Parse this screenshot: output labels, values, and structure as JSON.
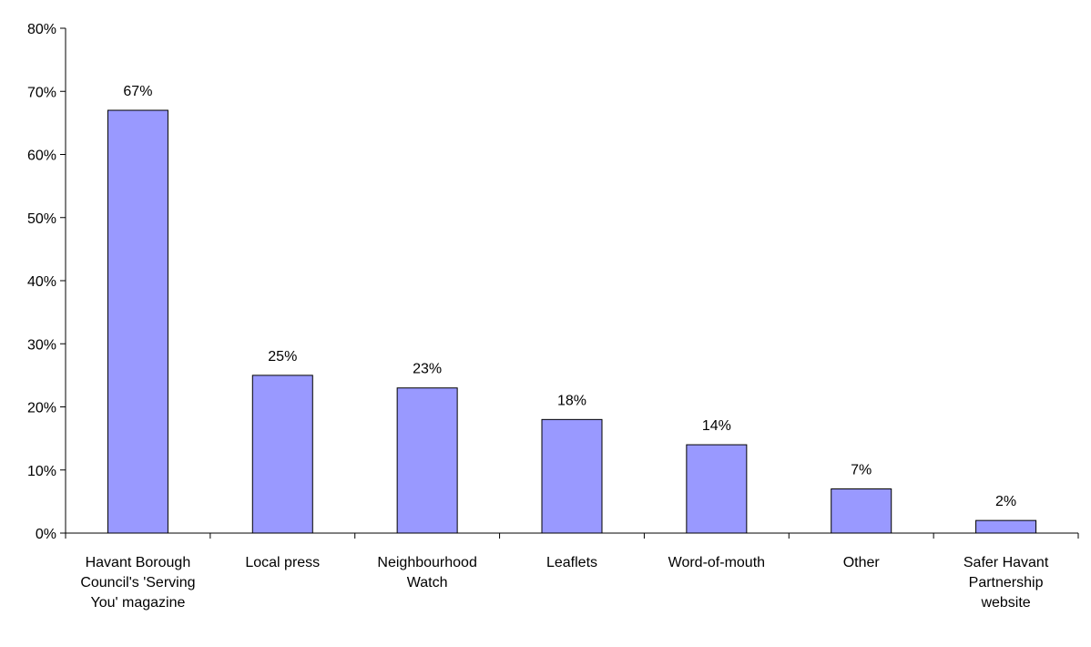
{
  "chart_data": {
    "type": "bar",
    "categories": [
      "Havant Borough Council's 'Serving You' magazine",
      "Local press",
      "Neighbourhood Watch",
      "Leaflets",
      "Word-of-mouth",
      "Other",
      "Safer Havant Partnership website"
    ],
    "values": [
      67,
      25,
      23,
      18,
      14,
      7,
      2
    ],
    "value_labels": [
      "67%",
      "25%",
      "23%",
      "18%",
      "14%",
      "7%",
      "2%"
    ],
    "color": "#9999ff",
    "ylim": [
      0,
      80
    ],
    "yticks": [
      {
        "value": 0,
        "label": "0%"
      },
      {
        "value": 10,
        "label": "10%"
      },
      {
        "value": 20,
        "label": "20%"
      },
      {
        "value": 30,
        "label": "30%"
      },
      {
        "value": 40,
        "label": "40%"
      },
      {
        "value": 50,
        "label": "50%"
      },
      {
        "value": 60,
        "label": "60%"
      },
      {
        "value": 70,
        "label": "70%"
      },
      {
        "value": 80,
        "label": "80%"
      }
    ],
    "grid": false
  }
}
